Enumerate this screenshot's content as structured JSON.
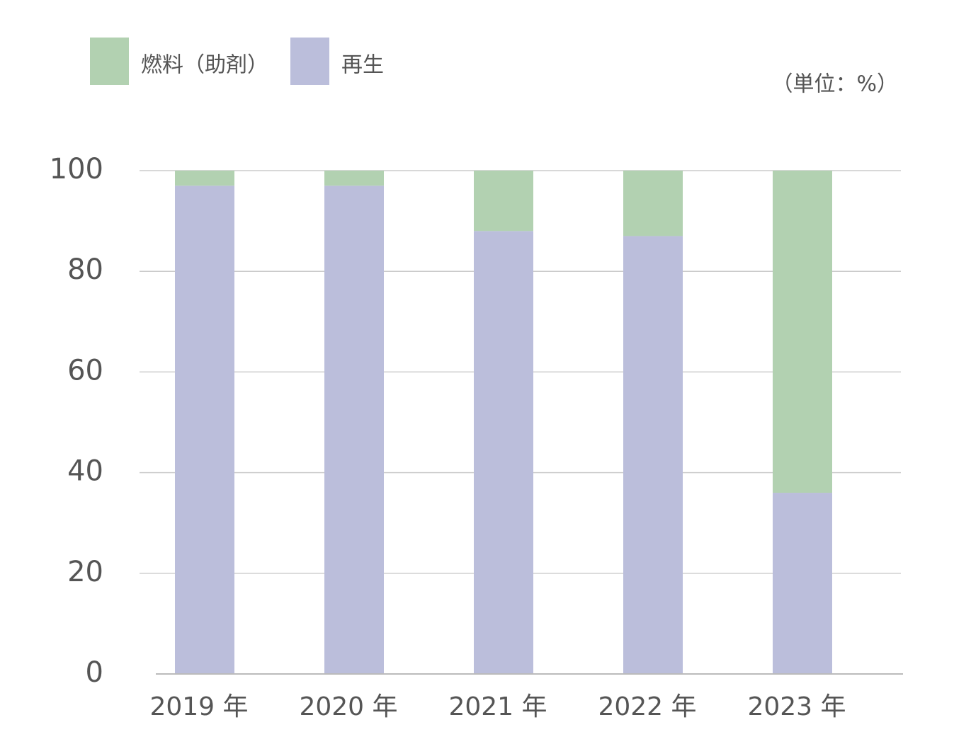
{
  "chart_data": {
    "type": "stacked-bar",
    "unit_label": "（単位：%）",
    "categories": [
      "2019 年",
      "2020 年",
      "2021 年",
      "2022 年",
      "2023 年"
    ],
    "series": [
      {
        "name": "燃料（助剤）",
        "color": "#b2d1b1",
        "values": [
          3,
          3,
          12,
          13,
          64
        ]
      },
      {
        "name": "再生",
        "color": "#bbbedb",
        "values": [
          97,
          97,
          88,
          87,
          36
        ]
      }
    ],
    "ylim": [
      0,
      100
    ],
    "yticks": [
      0,
      20,
      40,
      60,
      80,
      100
    ],
    "grid": true
  }
}
